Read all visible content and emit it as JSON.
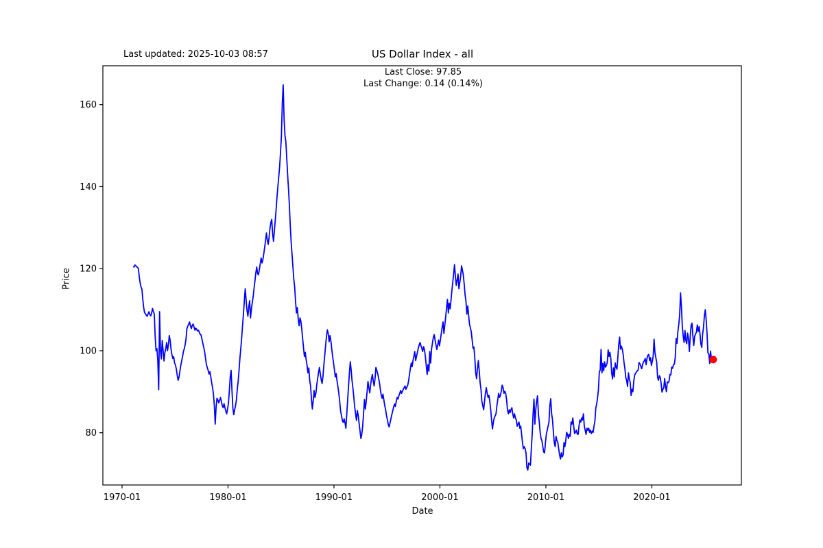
{
  "header": {
    "last_updated": "Last updated: 2025-10-03 08:57",
    "title": "US Dollar Index - all"
  },
  "annotation": {
    "line1": "Last Close: 97.85",
    "line2": "Last Change: 0.14 (0.14%)"
  },
  "chart_data": {
    "type": "line",
    "title": "US Dollar Index - all",
    "xlabel": "Date",
    "ylabel": "Price",
    "series_name": "US Dollar Index price",
    "line_color": "#0000ff",
    "marker_color": "#ff0000",
    "background": "#ffffff",
    "grid": false,
    "legend": "none",
    "last_close": 97.85,
    "last_change": 0.14,
    "last_change_pct": "0.14%",
    "x_ticks": [
      {
        "year": 1970,
        "label": "1970-01"
      },
      {
        "year": 1980,
        "label": "1980-01"
      },
      {
        "year": 1990,
        "label": "1990-01"
      },
      {
        "year": 2000,
        "label": "2000-01"
      },
      {
        "year": 2010,
        "label": "2010-01"
      },
      {
        "year": 2020,
        "label": "2020-01"
      }
    ],
    "y_ticks": [
      80,
      100,
      120,
      140,
      160
    ],
    "xlim": [
      1968.19,
      2028.45
    ],
    "ylim": [
      67.26,
      169.47
    ],
    "series_start": "1971-01",
    "series_frequency": "monthly",
    "values": [
      120.5,
      120.4,
      120.9,
      120.7,
      120.5,
      120.3,
      120.0,
      118.0,
      116.5,
      115.5,
      115.0,
      112.5,
      110.5,
      109.3,
      109.0,
      108.6,
      108.4,
      109.0,
      109.5,
      108.8,
      108.5,
      109.2,
      110.3,
      109.5,
      109.0,
      103.5,
      100.0,
      100.5,
      97.5,
      90.5,
      109.5,
      100.0,
      98.0,
      102.5,
      100.0,
      97.5,
      99.5,
      100.5,
      102.0,
      100.0,
      101.5,
      103.7,
      102.5,
      100.3,
      99.0,
      98.1,
      98.5,
      97.0,
      96.5,
      95.5,
      94.0,
      92.8,
      93.5,
      95.0,
      96.4,
      97.5,
      98.5,
      99.8,
      100.5,
      101.5,
      103.0,
      105.4,
      106.0,
      106.5,
      107.0,
      106.0,
      105.4,
      106.2,
      106.5,
      105.8,
      105.0,
      105.5,
      105.2,
      104.8,
      105.0,
      104.5,
      104.0,
      103.8,
      102.8,
      101.8,
      100.8,
      99.8,
      98.2,
      96.6,
      95.9,
      95.2,
      94.3,
      94.9,
      93.6,
      92.2,
      91.0,
      89.4,
      86.6,
      82.1,
      86.2,
      88.4,
      88.0,
      87.3,
      87.8,
      88.6,
      87.6,
      86.6,
      86.1,
      87.1,
      86.1,
      85.3,
      84.6,
      85.8,
      87.2,
      90.2,
      93.6,
      95.2,
      90.3,
      86.0,
      84.4,
      85.6,
      86.6,
      88.0,
      90.6,
      92.6,
      95.2,
      98.2,
      100.6,
      103.2,
      106.2,
      109.0,
      112.2,
      115.1,
      112.4,
      109.8,
      108.4,
      110.6,
      112.2,
      108.0,
      110.2,
      111.8,
      113.2,
      115.2,
      117.0,
      119.0,
      120.4,
      118.8,
      118.5,
      119.8,
      121.2,
      122.6,
      121.4,
      122.2,
      123.6,
      125.2,
      126.8,
      128.7,
      127.0,
      125.9,
      127.6,
      129.8,
      131.2,
      132.0,
      128.6,
      126.7,
      129.2,
      131.8,
      134.5,
      137.5,
      140.0,
      142.5,
      145.0,
      148.5,
      152.5,
      160.5,
      164.8,
      156.5,
      152.5,
      151.0,
      147.0,
      143.0,
      139.5,
      135.5,
      130.5,
      126.5,
      123.5,
      120.5,
      117.5,
      115.5,
      112.0,
      109.2,
      110.5,
      107.8,
      106.1,
      108.0,
      107.2,
      105.4,
      103.0,
      100.8,
      98.6,
      99.6,
      97.8,
      96.4,
      94.6,
      95.8,
      92.8,
      91.4,
      88.2,
      85.8,
      87.8,
      90.3,
      88.6,
      89.6,
      91.6,
      93.2,
      94.6,
      95.9,
      94.4,
      93.0,
      92.0,
      93.6,
      96.4,
      98.8,
      101.2,
      103.4,
      105.1,
      104.2,
      102.2,
      103.7,
      102.4,
      100.4,
      98.6,
      97.0,
      95.4,
      93.6,
      94.4,
      92.6,
      91.2,
      89.6,
      87.6,
      85.3,
      84.2,
      83.0,
      82.5,
      83.4,
      82.4,
      81.1,
      84.6,
      88.0,
      91.4,
      94.6,
      97.3,
      95.2,
      92.6,
      90.8,
      88.6,
      86.2,
      84.6,
      83.0,
      85.4,
      84.2,
      82.2,
      80.4,
      78.6,
      79.6,
      81.6,
      84.6,
      88.1,
      85.8,
      87.6,
      90.0,
      92.5,
      91.0,
      89.7,
      91.6,
      93.2,
      94.2,
      92.6,
      91.4,
      93.2,
      95.9,
      95.2,
      94.4,
      93.4,
      92.2,
      90.6,
      89.2,
      88.4,
      89.4,
      88.0,
      86.6,
      85.6,
      84.2,
      83.2,
      82.0,
      81.4,
      82.4,
      83.4,
      84.4,
      85.3,
      86.2,
      87.0,
      86.4,
      87.6,
      88.6,
      88.2,
      89.0,
      89.6,
      90.3,
      89.6,
      90.1,
      90.6,
      91.0,
      91.4,
      90.6,
      91.1,
      91.6,
      92.6,
      94.2,
      95.6,
      97.0,
      96.1,
      97.6,
      98.6,
      99.8,
      97.6,
      98.6,
      99.6,
      100.6,
      101.4,
      102.0,
      101.2,
      100.6,
      99.8,
      101.0,
      100.2,
      98.6,
      96.4,
      94.2,
      96.6,
      95.0,
      99.8,
      97.0,
      100.4,
      101.8,
      103.2,
      103.9,
      102.6,
      101.4,
      100.3,
      101.4,
      102.6,
      101.2,
      102.6,
      104.2,
      105.6,
      107.0,
      104.2,
      106.2,
      108.2,
      110.4,
      112.5,
      109.2,
      111.6,
      110.2,
      112.2,
      114.6,
      116.6,
      118.6,
      121.0,
      118.2,
      115.9,
      117.2,
      118.7,
      115.1,
      116.6,
      118.2,
      120.7,
      119.6,
      118.4,
      116.2,
      113.6,
      112.0,
      108.9,
      110.9,
      108.6,
      106.4,
      105.6,
      104.6,
      102.6,
      100.6,
      100.9,
      98.2,
      94.6,
      93.2,
      95.6,
      97.6,
      95.2,
      92.2,
      90.6,
      87.6,
      86.6,
      85.6,
      87.6,
      89.6,
      91.0,
      89.6,
      88.6,
      89.1,
      87.6,
      85.6,
      83.1,
      80.9,
      82.6,
      83.6,
      84.1,
      84.6,
      86.6,
      88.1,
      89.6,
      88.6,
      89.1,
      90.1,
      91.6,
      91.0,
      89.6,
      90.1,
      89.6,
      88.1,
      85.6,
      84.6,
      85.6,
      84.9,
      85.6,
      86.1,
      84.6,
      83.6,
      84.6,
      83.6,
      83.1,
      81.6,
      82.1,
      82.6,
      81.1,
      81.6,
      79.6,
      77.6,
      76.1,
      76.6,
      76.1,
      75.1,
      71.5,
      70.9,
      72.6,
      72.4,
      72.1,
      76.1,
      79.6,
      84.6,
      88.2,
      82.1,
      85.6,
      87.6,
      89.0,
      84.6,
      82.6,
      80.1,
      78.6,
      78.1,
      76.6,
      75.3,
      75.1,
      77.6,
      79.6,
      80.6,
      81.6,
      82.6,
      86.6,
      88.3,
      84.6,
      83.1,
      80.1,
      77.6,
      76.6,
      79.1,
      78.1,
      77.6,
      76.1,
      74.6,
      73.6,
      75.1,
      74.1,
      74.6,
      77.6,
      76.6,
      78.1,
      80.1,
      79.6,
      78.6,
      79.6,
      79.1,
      82.6,
      82.1,
      83.6,
      81.6,
      79.8,
      80.1,
      80.6,
      79.7,
      79.6,
      81.6,
      83.1,
      82.6,
      83.6,
      83.1,
      84.6,
      81.6,
      80.6,
      79.6,
      81.1,
      80.6,
      81.1,
      80.1,
      80.6,
      79.8,
      80.4,
      80.1,
      81.6,
      82.8,
      86.0,
      87.0,
      88.5,
      90.5,
      94.8,
      95.3,
      100.3,
      94.6,
      96.9,
      95.1,
      97.3,
      96.0,
      96.4,
      97.1,
      100.2,
      98.6,
      99.6,
      98.2,
      94.6,
      93.1,
      95.8,
      93.6,
      97.0,
      96.0,
      95.5,
      98.4,
      101.5,
      103.3,
      100.4,
      101.1,
      100.4,
      99.1,
      97.1,
      95.6,
      93.4,
      92.7,
      91.3,
      94.6,
      93.1,
      92.3,
      89.1,
      90.6,
      90.0,
      92.5,
      94.0,
      94.5,
      94.8,
      95.1,
      95.3,
      97.1,
      96.8,
      96.2,
      95.6,
      96.6,
      97.3,
      97.5,
      98.1,
      96.6,
      98.1,
      98.9,
      99.1,
      97.6,
      98.3,
      96.4,
      97.4,
      98.6,
      102.8,
      99.6,
      98.3,
      97.2,
      93.5,
      92.8,
      93.9,
      93.5,
      92.0,
      89.9,
      90.6,
      90.9,
      93.2,
      91.3,
      90.0,
      92.4,
      92.2,
      92.6,
      94.2,
      94.1,
      96.0,
      95.7,
      96.6,
      96.7,
      98.3,
      103.0,
      101.8,
      104.7,
      106.4,
      108.7,
      114.1,
      110.7,
      106.0,
      103.5,
      102.0,
      104.9,
      102.5,
      101.7,
      104.3,
      102.9,
      99.8,
      103.6,
      106.2,
      106.7,
      103.5,
      101.3,
      103.5,
      104.1,
      104.5,
      106.3,
      104.7,
      105.9,
      104.1,
      101.7,
      100.8,
      104.0,
      105.7,
      108.5,
      110.0,
      107.6,
      104.2,
      99.5,
      99.3,
      96.9,
      99.9,
      97.8,
      97.7,
      97.85
    ]
  }
}
